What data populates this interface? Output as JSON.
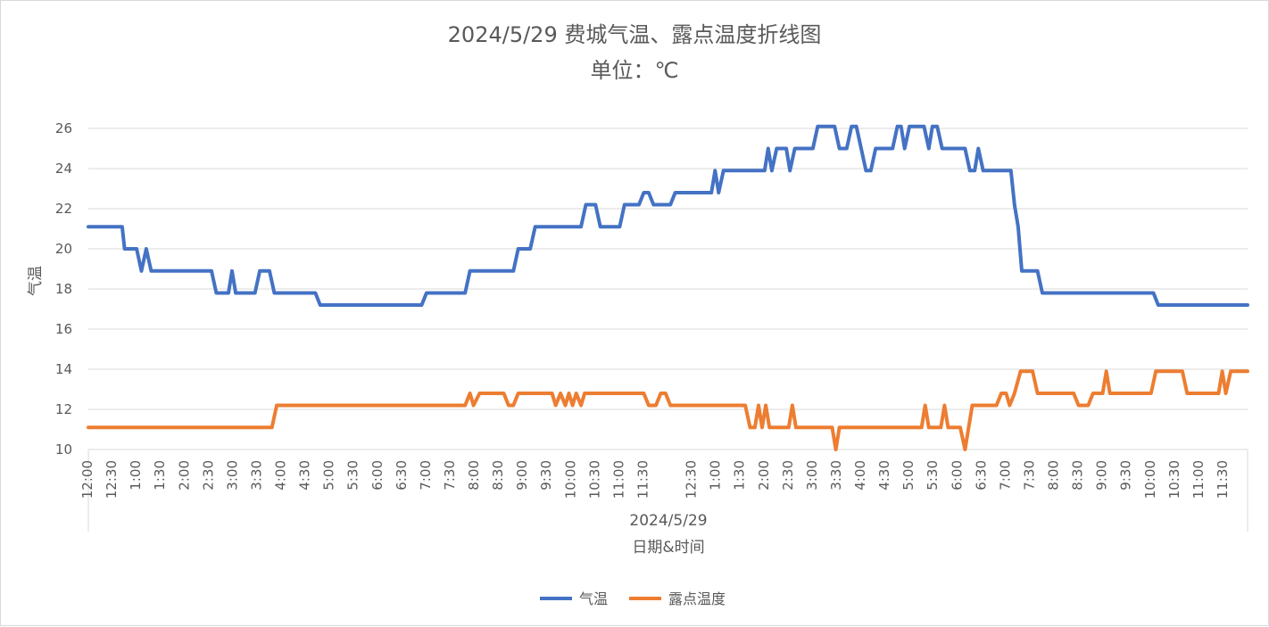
{
  "chart_data": {
    "type": "line",
    "title": "2024/5/29 费城气温、露点温度折线图",
    "subtitle": "单位：℃",
    "xlabel": "日期&时间",
    "x_group_label": "2024/5/29",
    "ylabel": "气温",
    "ylim": [
      10,
      26
    ],
    "yticks": [
      10,
      12,
      14,
      16,
      18,
      20,
      22,
      24,
      26
    ],
    "grid": true,
    "legend_position": "bottom",
    "categories": [
      "12:00",
      "12:30",
      "1:00",
      "1:30",
      "2:00",
      "2:30",
      "3:00",
      "3:30",
      "4:00",
      "4:30",
      "5:00",
      "5:30",
      "6:00",
      "6:30",
      "7:00",
      "7:30",
      "8:00",
      "8:30",
      "9:00",
      "9:30",
      "10:00",
      "10:30",
      "11:00",
      "11:30",
      "12:30",
      "1:00",
      "1:30",
      "2:00",
      "2:30",
      "3:00",
      "3:30",
      "4:00",
      "4:30",
      "5:00",
      "5:30",
      "6:00",
      "6:30",
      "7:00",
      "7:30",
      "8:00",
      "8:30",
      "9:00",
      "9:30",
      "10:00",
      "10:30",
      "11:00",
      "11:30"
    ],
    "series": [
      {
        "name": "气温",
        "color": "#4472c4",
        "points": [
          [
            0,
            21.1
          ],
          [
            1.4,
            21.1
          ],
          [
            1.5,
            20
          ],
          [
            2,
            20
          ],
          [
            2.2,
            18.9
          ],
          [
            2.4,
            20
          ],
          [
            2.6,
            18.9
          ],
          [
            5.1,
            18.9
          ],
          [
            5.3,
            17.8
          ],
          [
            5.8,
            17.8
          ],
          [
            5.95,
            18.9
          ],
          [
            6.1,
            17.8
          ],
          [
            6.9,
            17.8
          ],
          [
            7.1,
            18.9
          ],
          [
            7.5,
            18.9
          ],
          [
            7.7,
            17.8
          ],
          [
            9.4,
            17.8
          ],
          [
            9.6,
            17.2
          ],
          [
            13.8,
            17.2
          ],
          [
            14.0,
            17.8
          ],
          [
            15.6,
            17.8
          ],
          [
            15.8,
            18.9
          ],
          [
            17.6,
            18.9
          ],
          [
            17.8,
            20
          ],
          [
            18.3,
            20
          ],
          [
            18.5,
            21.1
          ],
          [
            20.4,
            21.1
          ],
          [
            20.6,
            22.2
          ],
          [
            21.0,
            22.2
          ],
          [
            21.2,
            21.1
          ],
          [
            22.0,
            21.1
          ],
          [
            22.2,
            22.2
          ],
          [
            22.8,
            22.2
          ],
          [
            23.0,
            22.8
          ],
          [
            23.2,
            22.8
          ],
          [
            23.4,
            22.2
          ],
          [
            24.1,
            22.2
          ],
          [
            24.3,
            22.8
          ],
          [
            25.8,
            22.8
          ],
          [
            25.95,
            23.9
          ],
          [
            26.1,
            22.8
          ],
          [
            26.3,
            23.9
          ],
          [
            28.0,
            23.9
          ],
          [
            28.15,
            25
          ],
          [
            28.3,
            23.9
          ],
          [
            28.5,
            25
          ],
          [
            28.9,
            25
          ],
          [
            29.05,
            23.9
          ],
          [
            29.25,
            25
          ],
          [
            30.0,
            25
          ],
          [
            30.2,
            26.1
          ],
          [
            30.9,
            26.1
          ],
          [
            31.1,
            25
          ],
          [
            31.4,
            25
          ],
          [
            31.6,
            26.1
          ],
          [
            31.8,
            26.1
          ],
          [
            32.0,
            25
          ],
          [
            32.2,
            23.9
          ],
          [
            32.4,
            23.9
          ],
          [
            32.6,
            25
          ],
          [
            33.3,
            25
          ],
          [
            33.5,
            26.1
          ],
          [
            33.65,
            26.1
          ],
          [
            33.8,
            25
          ],
          [
            34.0,
            26.1
          ],
          [
            34.6,
            26.1
          ],
          [
            34.8,
            25
          ],
          [
            34.95,
            26.1
          ],
          [
            35.15,
            26.1
          ],
          [
            35.35,
            25
          ],
          [
            36.3,
            25
          ],
          [
            36.5,
            23.9
          ],
          [
            36.7,
            23.9
          ],
          [
            36.85,
            25
          ],
          [
            37.05,
            23.9
          ],
          [
            38.2,
            23.9
          ],
          [
            38.35,
            22.2
          ],
          [
            38.5,
            21.1
          ],
          [
            38.65,
            18.9
          ],
          [
            39.3,
            18.9
          ],
          [
            39.5,
            17.8
          ],
          [
            44.1,
            17.8
          ],
          [
            44.3,
            17.2
          ],
          [
            48,
            17.2
          ]
        ]
      },
      {
        "name": "露点温度",
        "color": "#ed7d31",
        "points": [
          [
            0,
            11.1
          ],
          [
            7.6,
            11.1
          ],
          [
            7.8,
            12.2
          ],
          [
            15.6,
            12.2
          ],
          [
            15.8,
            12.8
          ],
          [
            15.95,
            12.2
          ],
          [
            16.2,
            12.8
          ],
          [
            17.2,
            12.8
          ],
          [
            17.4,
            12.2
          ],
          [
            17.6,
            12.2
          ],
          [
            17.8,
            12.8
          ],
          [
            19.2,
            12.8
          ],
          [
            19.35,
            12.2
          ],
          [
            19.55,
            12.8
          ],
          [
            19.75,
            12.2
          ],
          [
            19.9,
            12.8
          ],
          [
            20.05,
            12.2
          ],
          [
            20.2,
            12.8
          ],
          [
            20.4,
            12.2
          ],
          [
            20.55,
            12.8
          ],
          [
            23.0,
            12.8
          ],
          [
            23.2,
            12.2
          ],
          [
            23.5,
            12.2
          ],
          [
            23.7,
            12.8
          ],
          [
            23.9,
            12.8
          ],
          [
            24.1,
            12.2
          ],
          [
            27.2,
            12.2
          ],
          [
            27.4,
            11.1
          ],
          [
            27.6,
            11.1
          ],
          [
            27.75,
            12.2
          ],
          [
            27.9,
            11.1
          ],
          [
            28.05,
            12.2
          ],
          [
            28.2,
            11.1
          ],
          [
            29.0,
            11.1
          ],
          [
            29.15,
            12.2
          ],
          [
            29.3,
            11.1
          ],
          [
            30.8,
            11.1
          ],
          [
            30.95,
            10
          ],
          [
            31.1,
            11.1
          ],
          [
            34.5,
            11.1
          ],
          [
            34.65,
            12.2
          ],
          [
            34.8,
            11.1
          ],
          [
            35.3,
            11.1
          ],
          [
            35.45,
            12.2
          ],
          [
            35.6,
            11.1
          ],
          [
            36.1,
            11.1
          ],
          [
            36.3,
            10
          ],
          [
            36.6,
            12.2
          ],
          [
            37.6,
            12.2
          ],
          [
            37.8,
            12.8
          ],
          [
            38.0,
            12.8
          ],
          [
            38.15,
            12.2
          ],
          [
            38.35,
            12.8
          ],
          [
            38.6,
            13.9
          ],
          [
            39.1,
            13.9
          ],
          [
            39.3,
            12.8
          ],
          [
            40.8,
            12.8
          ],
          [
            41.0,
            12.2
          ],
          [
            41.4,
            12.2
          ],
          [
            41.6,
            12.8
          ],
          [
            42.0,
            12.8
          ],
          [
            42.15,
            13.9
          ],
          [
            42.3,
            12.8
          ],
          [
            44.0,
            12.8
          ],
          [
            44.2,
            13.9
          ],
          [
            45.3,
            13.9
          ],
          [
            45.5,
            12.8
          ],
          [
            46.8,
            12.8
          ],
          [
            46.95,
            13.9
          ],
          [
            47.1,
            12.8
          ],
          [
            47.3,
            13.9
          ],
          [
            48,
            13.9
          ]
        ]
      }
    ]
  }
}
